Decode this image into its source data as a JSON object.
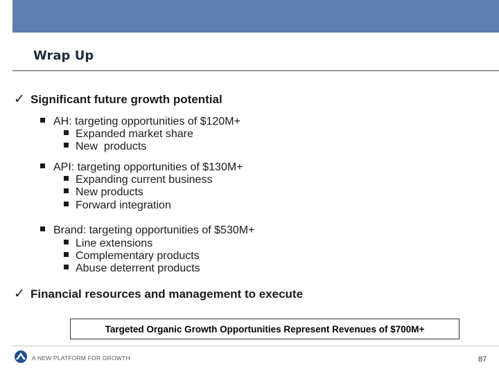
{
  "slide": {
    "title": "Wrap Up",
    "points": [
      {
        "text": "Significant future growth potential",
        "subpoints": [
          {
            "text": "AH: targeting opportunities of $120M+",
            "items": [
              "Expanded market share",
              "New  products"
            ]
          },
          {
            "text": "API: targeting opportunities of $130M+",
            "items": [
              "Expanding current business",
              "New products",
              "Forward integration"
            ]
          },
          {
            "text": "Brand: targeting opportunities of $530M+",
            "items": [
              "Line extensions",
              "Complementary products",
              "Abuse deterrent products"
            ]
          }
        ]
      },
      {
        "text": "Financial resources and management to execute"
      }
    ],
    "callout": "Targeted Organic Growth Opportunities Represent Revenues of $700M+",
    "check_glyph": "✓"
  },
  "footer": {
    "tagline": "A NEW PLATFORM FOR GROWTH",
    "page_number": "87"
  },
  "colors": {
    "header_bar": "#5b7fae",
    "title": "#1f2b3d"
  },
  "icons": {
    "check": "check-icon",
    "bullet": "square-bullet-icon",
    "logo": "logo-icon"
  }
}
